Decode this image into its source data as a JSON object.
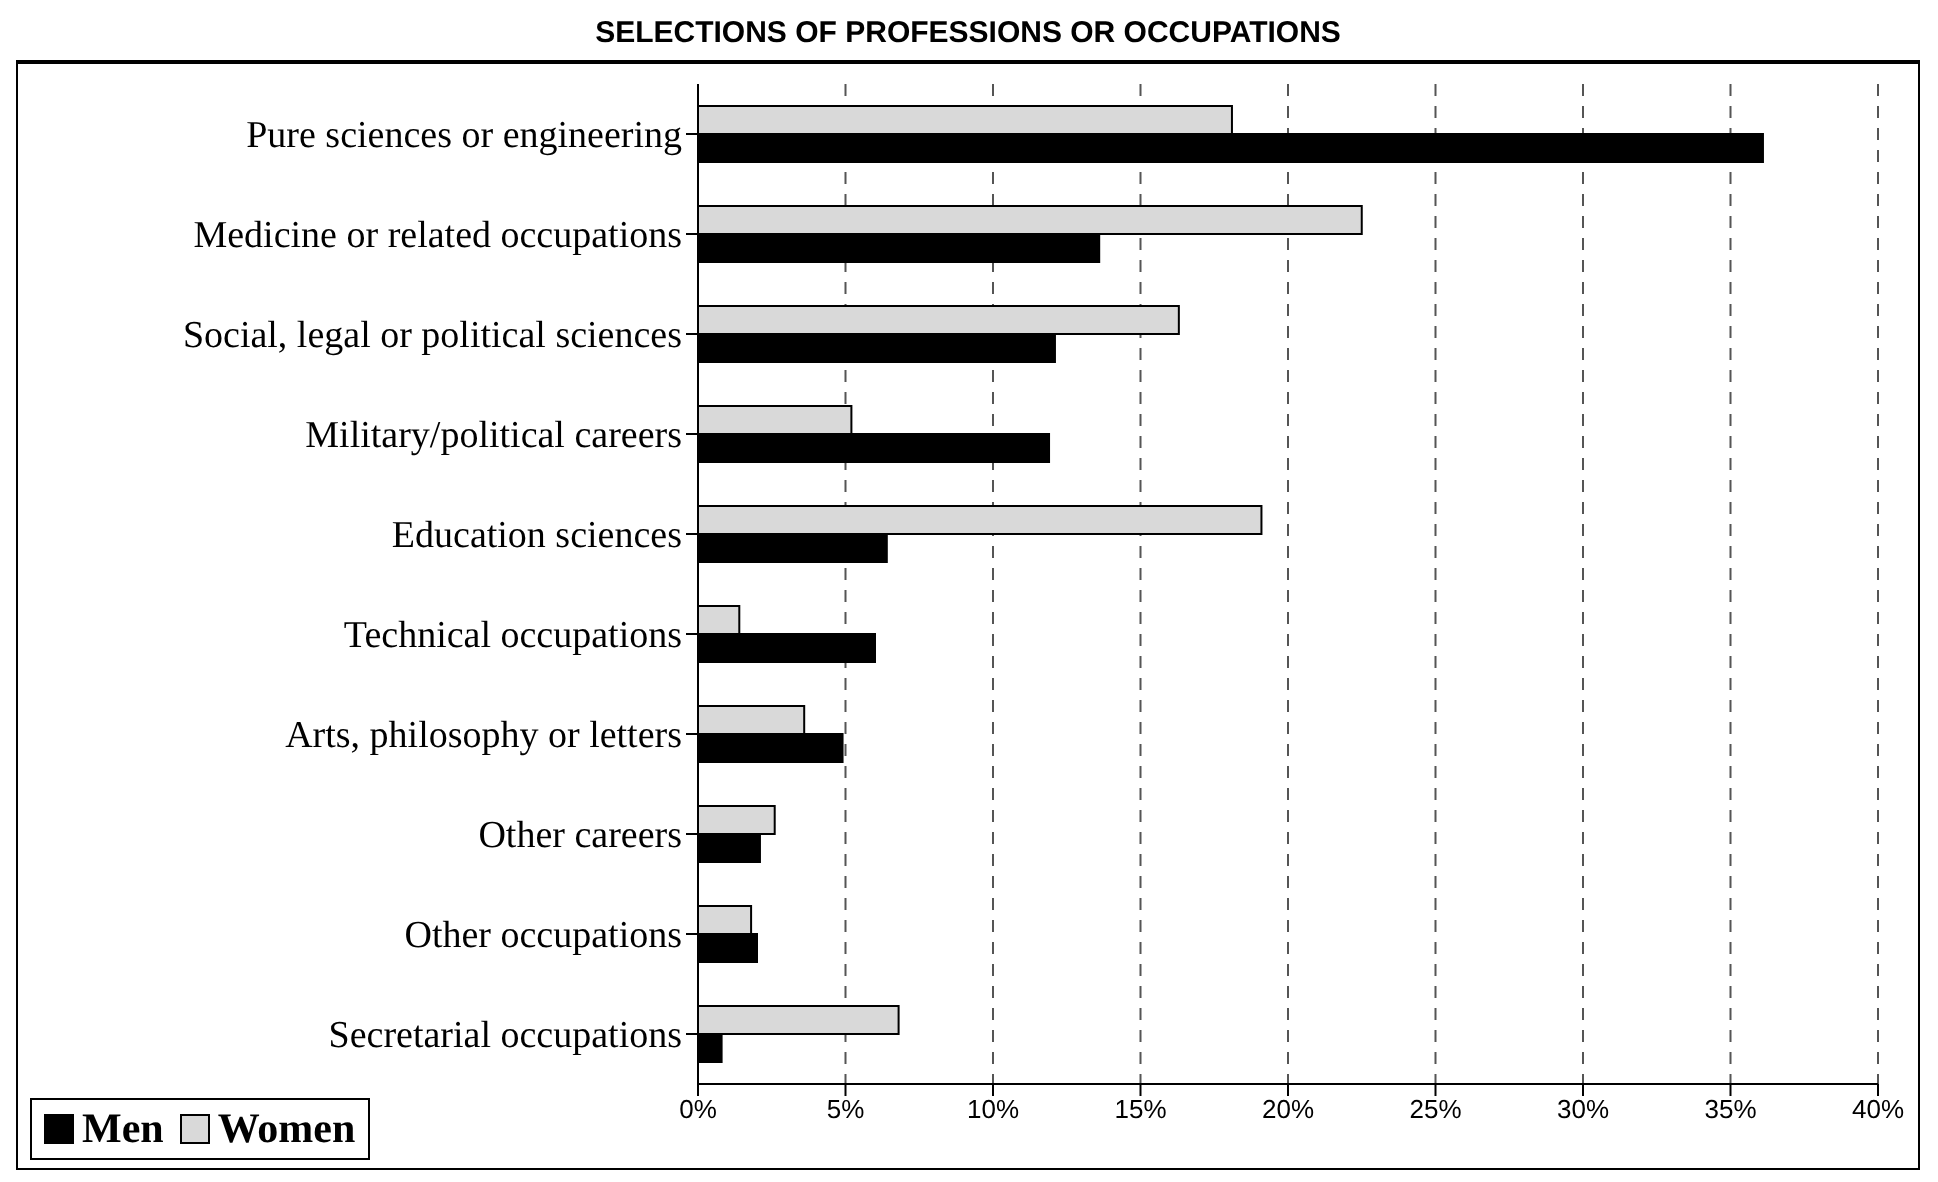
{
  "chart_data": {
    "type": "bar",
    "orientation": "horizontal",
    "title": "SELECTIONS OF PROFESSIONS OR OCCUPATIONS",
    "categories": [
      "Pure sciences or engineering",
      "Medicine or related occupations",
      "Social, legal or political sciences",
      "Military/political careers",
      "Education sciences",
      "Technical occupations",
      "Arts, philosophy or letters",
      "Other careers",
      "Other occupations",
      "Secretarial occupations"
    ],
    "series": [
      {
        "name": "Men",
        "color": "#000000",
        "values": [
          36.1,
          13.6,
          12.1,
          11.9,
          6.4,
          6.0,
          4.9,
          2.1,
          2.0,
          0.8
        ]
      },
      {
        "name": "Women",
        "color": "#d9d9d9",
        "values": [
          18.1,
          22.5,
          16.3,
          5.2,
          19.1,
          1.4,
          3.6,
          2.6,
          1.8,
          6.8
        ]
      }
    ],
    "xlim": [
      0,
      40
    ],
    "xticks": [
      {
        "value": 0,
        "label": "0%"
      },
      {
        "value": 5,
        "label": "5%"
      },
      {
        "value": 10,
        "label": "10%"
      },
      {
        "value": 15,
        "label": "15%"
      },
      {
        "value": 20,
        "label": "20%"
      },
      {
        "value": 25,
        "label": "25%"
      },
      {
        "value": 30,
        "label": "30%"
      },
      {
        "value": 35,
        "label": "35%"
      },
      {
        "value": 40,
        "label": "40%"
      }
    ],
    "grid": "x",
    "legend": "bottom left"
  }
}
